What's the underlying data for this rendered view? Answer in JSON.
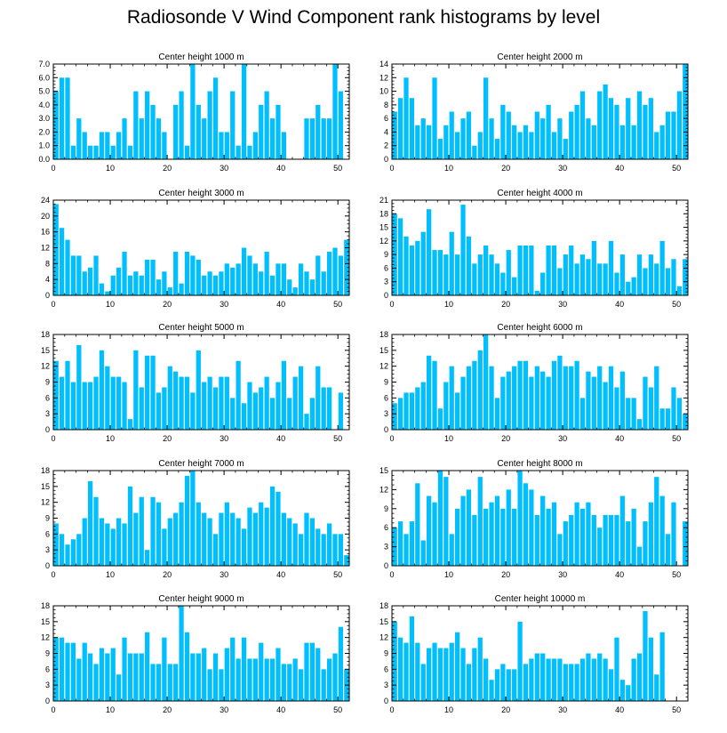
{
  "title": "Radiosonde V Wind Component rank histograms by level",
  "colors": {
    "bar": "#00bfff",
    "axis": "#000000",
    "background": "#ffffff"
  },
  "chart_data": [
    {
      "type": "bar",
      "title": "Center height 1000 m",
      "x": [
        0,
        1,
        2,
        3,
        4,
        5,
        6,
        7,
        8,
        9,
        10,
        11,
        12,
        13,
        14,
        15,
        16,
        17,
        18,
        19,
        20,
        21,
        22,
        23,
        24,
        25,
        26,
        27,
        28,
        29,
        30,
        31,
        32,
        33,
        34,
        35,
        36,
        37,
        38,
        39,
        40,
        41,
        42,
        43,
        44,
        45,
        46,
        47,
        48,
        49,
        50,
        51
      ],
      "values": [
        5,
        6,
        6,
        1,
        3,
        2,
        1,
        1,
        2,
        2,
        1,
        2,
        3,
        1,
        5,
        3,
        5,
        4,
        3,
        2,
        0,
        4,
        5,
        1,
        7,
        4,
        3,
        5,
        6,
        2,
        2,
        5,
        1,
        7,
        1,
        2,
        4,
        5,
        3,
        4,
        2,
        0,
        0,
        0,
        3,
        3,
        4,
        3,
        3,
        7,
        5,
        0
      ],
      "yticks": [
        "0.0",
        "1.0",
        "2.0",
        "3.0",
        "4.0",
        "5.0",
        "6.0",
        "7.0"
      ],
      "ylim": [
        0,
        7
      ],
      "xticks": [
        0,
        10,
        20,
        30,
        40,
        50
      ],
      "xlim": [
        0,
        52
      ]
    },
    {
      "type": "bar",
      "title": "Center height 2000 m",
      "x": [
        0,
        1,
        2,
        3,
        4,
        5,
        6,
        7,
        8,
        9,
        10,
        11,
        12,
        13,
        14,
        15,
        16,
        17,
        18,
        19,
        20,
        21,
        22,
        23,
        24,
        25,
        26,
        27,
        28,
        29,
        30,
        31,
        32,
        33,
        34,
        35,
        36,
        37,
        38,
        39,
        40,
        41,
        42,
        43,
        44,
        45,
        46,
        47,
        48,
        49,
        50,
        51
      ],
      "values": [
        7,
        9,
        12,
        9,
        5,
        6,
        5,
        12,
        3,
        5,
        7,
        4,
        6,
        7,
        2,
        4,
        12,
        6,
        3,
        8,
        7,
        5,
        4,
        5,
        4,
        7,
        6,
        8,
        4,
        6,
        3,
        7,
        8,
        10,
        6,
        5,
        10,
        11,
        9,
        8,
        5,
        9,
        5,
        10,
        8,
        9,
        4,
        5,
        7,
        7,
        10,
        14
      ],
      "yticks": [
        "0",
        "2",
        "4",
        "6",
        "8",
        "10",
        "12",
        "14"
      ],
      "ylim": [
        0,
        14
      ],
      "xticks": [
        0,
        10,
        20,
        30,
        40,
        50
      ],
      "xlim": [
        0,
        52
      ]
    },
    {
      "type": "bar",
      "title": "Center height 3000 m",
      "x": [
        0,
        1,
        2,
        3,
        4,
        5,
        6,
        7,
        8,
        9,
        10,
        11,
        12,
        13,
        14,
        15,
        16,
        17,
        18,
        19,
        20,
        21,
        22,
        23,
        24,
        25,
        26,
        27,
        28,
        29,
        30,
        31,
        32,
        33,
        34,
        35,
        36,
        37,
        38,
        39,
        40,
        41,
        42,
        43,
        44,
        45,
        46,
        47,
        48,
        49,
        50,
        51
      ],
      "values": [
        23,
        17,
        14,
        10,
        10,
        6,
        7,
        10,
        3,
        1,
        5,
        7,
        11,
        5,
        6,
        5,
        9,
        9,
        4,
        6,
        2,
        11,
        3,
        11,
        10,
        9,
        5,
        6,
        5,
        6,
        8,
        7,
        8,
        12,
        10,
        8,
        6,
        11,
        5,
        8,
        8,
        4,
        2,
        8,
        6,
        4,
        10,
        6,
        11,
        12,
        10,
        14
      ],
      "yticks": [
        "0",
        "4",
        "8",
        "12",
        "16",
        "20",
        "24"
      ],
      "ylim": [
        0,
        24
      ],
      "xticks": [
        0,
        10,
        20,
        30,
        40,
        50
      ],
      "xlim": [
        0,
        52
      ]
    },
    {
      "type": "bar",
      "title": "Center height 4000 m",
      "x": [
        0,
        1,
        2,
        3,
        4,
        5,
        6,
        7,
        8,
        9,
        10,
        11,
        12,
        13,
        14,
        15,
        16,
        17,
        18,
        19,
        20,
        21,
        22,
        23,
        24,
        25,
        26,
        27,
        28,
        29,
        30,
        31,
        32,
        33,
        34,
        35,
        36,
        37,
        38,
        39,
        40,
        41,
        42,
        43,
        44,
        45,
        46,
        47,
        48,
        49,
        50,
        51
      ],
      "values": [
        18,
        17,
        13,
        11,
        12,
        14,
        19,
        10,
        10,
        9,
        14,
        9,
        20,
        13,
        7,
        9,
        11,
        9,
        7,
        5,
        10,
        4,
        11,
        11,
        11,
        1,
        5,
        11,
        11,
        6,
        9,
        11,
        7,
        9,
        8,
        12,
        7,
        7,
        12,
        5,
        9,
        3,
        4,
        9,
        6,
        9,
        7,
        12,
        6,
        8,
        2,
        8
      ],
      "yticks": [
        "0",
        "3",
        "6",
        "9",
        "12",
        "15",
        "18",
        "21"
      ],
      "ylim": [
        0,
        21
      ],
      "xticks": [
        0,
        10,
        20,
        30,
        40,
        50
      ],
      "xlim": [
        0,
        52
      ]
    },
    {
      "type": "bar",
      "title": "Center height 5000 m",
      "x": [
        0,
        1,
        2,
        3,
        4,
        5,
        6,
        7,
        8,
        9,
        10,
        11,
        12,
        13,
        14,
        15,
        16,
        17,
        18,
        19,
        20,
        21,
        22,
        23,
        24,
        25,
        26,
        27,
        28,
        29,
        30,
        31,
        32,
        33,
        34,
        35,
        36,
        37,
        38,
        39,
        40,
        41,
        42,
        43,
        44,
        45,
        46,
        47,
        48,
        49,
        50,
        51
      ],
      "values": [
        13,
        10,
        13,
        9,
        16,
        9,
        9,
        10,
        15,
        12,
        10,
        10,
        9,
        2,
        15,
        8,
        14,
        14,
        7,
        8,
        12,
        11,
        10,
        10,
        7,
        15,
        9,
        10,
        8,
        10,
        10,
        6,
        13,
        5,
        9,
        7,
        8,
        10,
        6,
        9,
        13,
        6,
        10,
        12,
        3,
        6,
        12,
        8,
        8,
        0,
        7,
        0
      ],
      "yticks": [
        "0",
        "3",
        "6",
        "9",
        "12",
        "15",
        "18"
      ],
      "ylim": [
        0,
        18
      ],
      "xticks": [
        0,
        10,
        20,
        30,
        40,
        50
      ],
      "xlim": [
        0,
        52
      ]
    },
    {
      "type": "bar",
      "title": "Center height 6000 m",
      "x": [
        0,
        1,
        2,
        3,
        4,
        5,
        6,
        7,
        8,
        9,
        10,
        11,
        12,
        13,
        14,
        15,
        16,
        17,
        18,
        19,
        20,
        21,
        22,
        23,
        24,
        25,
        26,
        27,
        28,
        29,
        30,
        31,
        32,
        33,
        34,
        35,
        36,
        37,
        38,
        39,
        40,
        41,
        42,
        43,
        44,
        45,
        46,
        47,
        48,
        49,
        50,
        51
      ],
      "values": [
        5,
        6,
        7,
        7,
        8,
        9,
        14,
        13,
        4,
        9,
        12,
        7,
        10,
        12,
        13,
        15,
        18,
        12,
        6,
        10,
        11,
        12,
        13,
        13,
        10,
        12,
        11,
        10,
        13,
        14,
        12,
        12,
        13,
        6,
        11,
        10,
        12,
        9,
        12,
        8,
        11,
        6,
        6,
        2,
        10,
        8,
        12,
        4,
        4,
        8,
        6,
        3
      ],
      "yticks": [
        "0",
        "3",
        "6",
        "9",
        "12",
        "15",
        "18"
      ],
      "ylim": [
        0,
        18
      ],
      "xticks": [
        0,
        10,
        20,
        30,
        40,
        50
      ],
      "xlim": [
        0,
        52
      ]
    },
    {
      "type": "bar",
      "title": "Center height 7000 m",
      "x": [
        0,
        1,
        2,
        3,
        4,
        5,
        6,
        7,
        8,
        9,
        10,
        11,
        12,
        13,
        14,
        15,
        16,
        17,
        18,
        19,
        20,
        21,
        22,
        23,
        24,
        25,
        26,
        27,
        28,
        29,
        30,
        31,
        32,
        33,
        34,
        35,
        36,
        37,
        38,
        39,
        40,
        41,
        42,
        43,
        44,
        45,
        46,
        47,
        48,
        49,
        50,
        51
      ],
      "values": [
        8,
        6,
        4,
        5,
        6,
        9,
        16,
        13,
        9,
        8,
        7,
        9,
        8,
        15,
        10,
        13,
        3,
        13,
        12,
        7,
        9,
        10,
        12,
        17,
        18,
        12,
        10,
        9,
        6,
        10,
        12,
        10,
        9,
        7,
        11,
        10,
        12,
        11,
        15,
        14,
        10,
        9,
        8,
        6,
        10,
        9,
        7,
        6,
        8,
        6,
        6,
        2
      ],
      "yticks": [
        "0",
        "3",
        "6",
        "9",
        "12",
        "15",
        "18"
      ],
      "ylim": [
        0,
        18
      ],
      "xticks": [
        0,
        10,
        20,
        30,
        40,
        50
      ],
      "xlim": [
        0,
        52
      ]
    },
    {
      "type": "bar",
      "title": "Center height 8000 m",
      "x": [
        0,
        1,
        2,
        3,
        4,
        5,
        6,
        7,
        8,
        9,
        10,
        11,
        12,
        13,
        14,
        15,
        16,
        17,
        18,
        19,
        20,
        21,
        22,
        23,
        24,
        25,
        26,
        27,
        28,
        29,
        30,
        31,
        32,
        33,
        34,
        35,
        36,
        37,
        38,
        39,
        40,
        41,
        42,
        43,
        44,
        45,
        46,
        47,
        48,
        49,
        50,
        51
      ],
      "values": [
        6,
        7,
        5,
        7,
        13,
        4,
        11,
        10,
        15,
        14,
        5,
        9,
        11,
        12,
        8,
        14,
        9,
        10,
        11,
        9,
        12,
        9,
        15,
        13,
        12,
        8,
        11,
        9,
        10,
        5,
        7,
        8,
        10,
        9,
        10,
        8,
        6,
        8,
        8,
        8,
        11,
        7,
        9,
        3,
        7,
        10,
        14,
        11,
        5,
        10,
        0,
        7
      ],
      "yticks": [
        "0",
        "3",
        "6",
        "9",
        "12",
        "15"
      ],
      "ylim": [
        0,
        15
      ],
      "xticks": [
        0,
        10,
        20,
        30,
        40,
        50
      ],
      "xlim": [
        0,
        52
      ]
    },
    {
      "type": "bar",
      "title": "Center height 9000 m",
      "x": [
        0,
        1,
        2,
        3,
        4,
        5,
        6,
        7,
        8,
        9,
        10,
        11,
        12,
        13,
        14,
        15,
        16,
        17,
        18,
        19,
        20,
        21,
        22,
        23,
        24,
        25,
        26,
        27,
        28,
        29,
        30,
        31,
        32,
        33,
        34,
        35,
        36,
        37,
        38,
        39,
        40,
        41,
        42,
        43,
        44,
        45,
        46,
        47,
        48,
        49,
        50,
        51
      ],
      "values": [
        12,
        12,
        11,
        11,
        8,
        11,
        9,
        7,
        10,
        9,
        10,
        5,
        12,
        9,
        9,
        9,
        13,
        7,
        7,
        12,
        7,
        7,
        18,
        13,
        9,
        9,
        10,
        6,
        9,
        6,
        10,
        12,
        8,
        12,
        8,
        8,
        11,
        8,
        8,
        10,
        7,
        7,
        8,
        6,
        11,
        11,
        10,
        6,
        8,
        9,
        14,
        6
      ],
      "yticks": [
        "0",
        "3",
        "6",
        "9",
        "12",
        "15",
        "18"
      ],
      "ylim": [
        0,
        18
      ],
      "xticks": [
        0,
        10,
        20,
        30,
        40,
        50
      ],
      "xlim": [
        0,
        52
      ]
    },
    {
      "type": "bar",
      "title": "Center height 10000 m",
      "x": [
        0,
        1,
        2,
        3,
        4,
        5,
        6,
        7,
        8,
        9,
        10,
        11,
        12,
        13,
        14,
        15,
        16,
        17,
        18,
        19,
        20,
        21,
        22,
        23,
        24,
        25,
        26,
        27,
        28,
        29,
        30,
        31,
        32,
        33,
        34,
        35,
        36,
        37,
        38,
        39,
        40,
        41,
        42,
        43,
        44,
        45,
        46,
        47,
        48,
        49,
        50,
        51
      ],
      "values": [
        15,
        12,
        11,
        16,
        11,
        7,
        10,
        11,
        10,
        10,
        11,
        13,
        10,
        7,
        10,
        12,
        8,
        4,
        6,
        7,
        6,
        6,
        15,
        7,
        8,
        9,
        9,
        8,
        8,
        8,
        7,
        7,
        7,
        8,
        9,
        8,
        9,
        8,
        6,
        12,
        4,
        3,
        8,
        9,
        17,
        12,
        5,
        13,
        0,
        0,
        0,
        0
      ],
      "yticks": [
        "0",
        "3",
        "6",
        "9",
        "12",
        "15",
        "18"
      ],
      "ylim": [
        0,
        18
      ],
      "xticks": [
        0,
        10,
        20,
        30,
        40,
        50
      ],
      "xlim": [
        0,
        52
      ]
    }
  ]
}
